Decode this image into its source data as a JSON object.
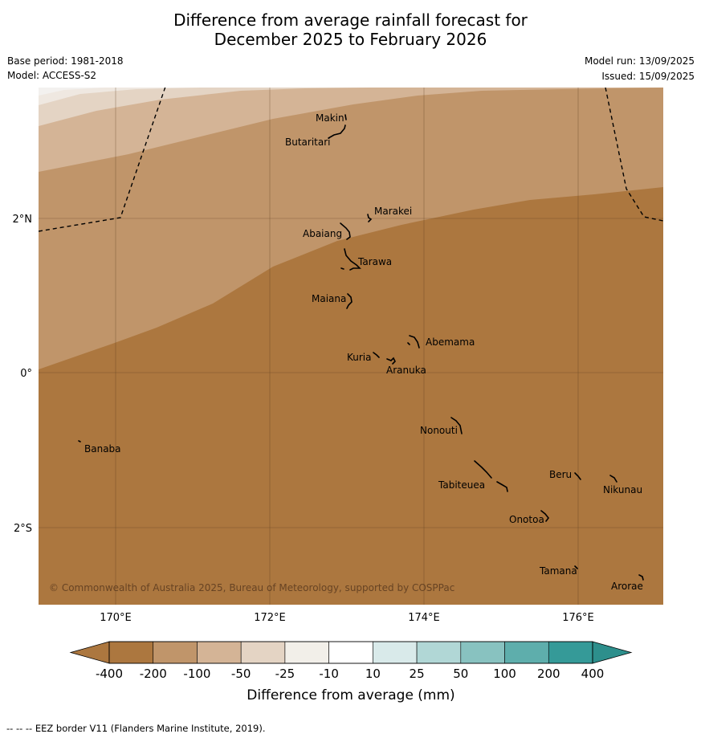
{
  "title": {
    "line1": "Difference from average rainfall forecast for",
    "line2": "December 2025 to February 2026"
  },
  "meta": {
    "base_period": "Base period: 1981-2018",
    "model": "Model: ACCESS-S2",
    "model_run": "Model run: 13/09/2025",
    "issued": "Issued: 15/09/2025"
  },
  "map": {
    "lat_labels": [
      "2°N",
      "0°",
      "2°S"
    ],
    "lon_labels": [
      "170°E",
      "172°E",
      "174°E",
      "176°E"
    ],
    "islands": [
      "Makin",
      "Butaritari",
      "Marakei",
      "Abaiang",
      "Tarawa",
      "Maiana",
      "Abemama",
      "Kuria",
      "Aranuka",
      "Nonouti",
      "Banaba",
      "Beru",
      "Nikunau",
      "Tabiteuea",
      "Onotoa",
      "Tamana",
      "Arorae"
    ],
    "copyright": "© Commonwealth of Australia 2025, Bureau of Meteorology, supported by COSPPac"
  },
  "colorbar": {
    "colors": [
      "#ac773f",
      "#c0956a",
      "#d4b496",
      "#e4d4c4",
      "#f2efe9",
      "#ffffff",
      "#d9eaea",
      "#b1d7d6",
      "#88c2c0",
      "#5eaeac",
      "#359a98"
    ],
    "extend_low_color": "#ac773f",
    "extend_high_color": "#2d8f8c",
    "tick_labels": [
      "-400",
      "-200",
      "-100",
      "-50",
      "-25",
      "-10",
      "10",
      "25",
      "50",
      "100",
      "200",
      "400"
    ],
    "label": "Difference from average (mm)"
  },
  "footer": "--  --  -- EEZ border V11 (Flanders Marine Institute, 2019)."
}
